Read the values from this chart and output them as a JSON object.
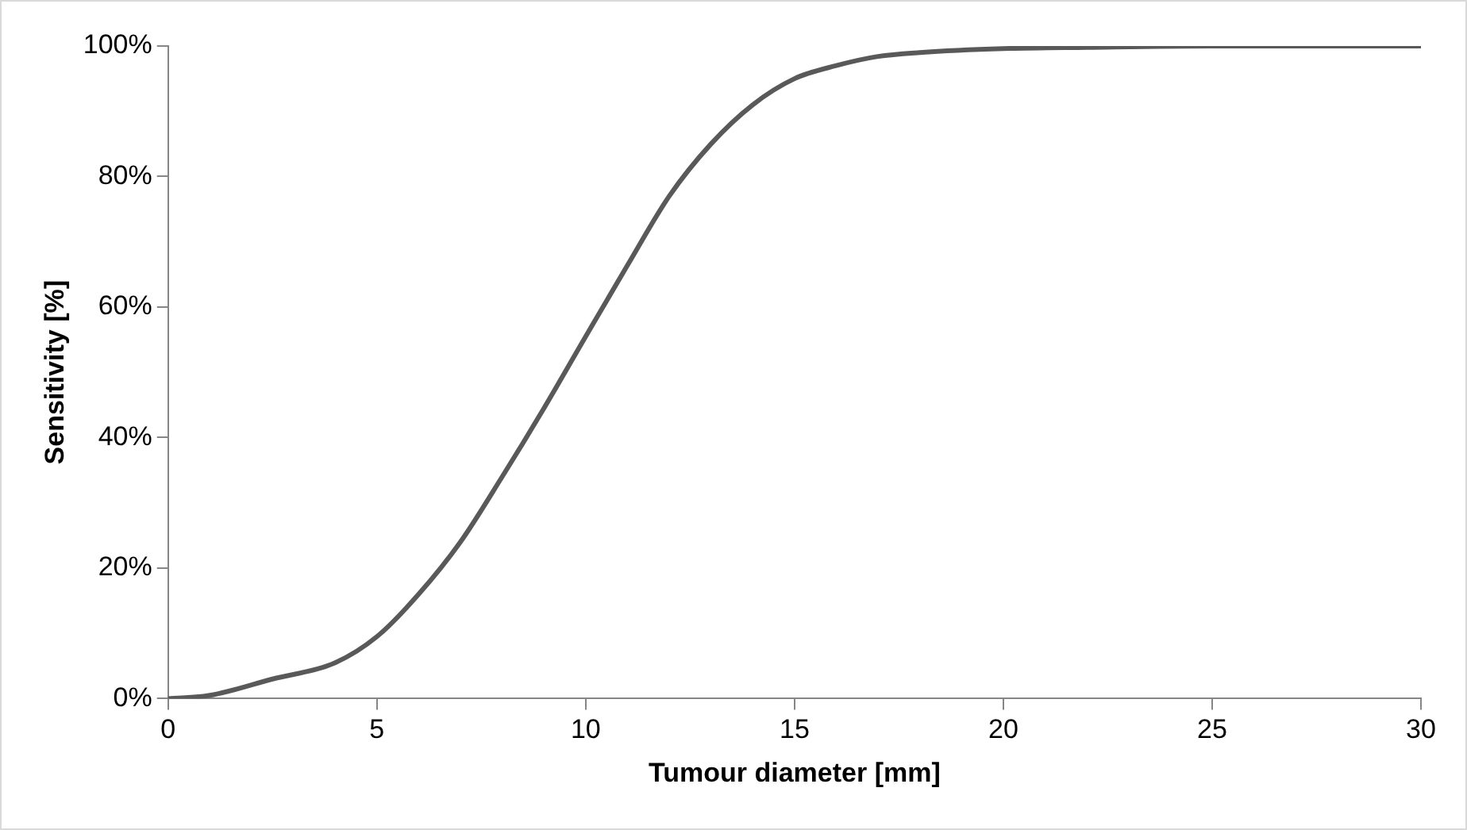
{
  "chart_data": {
    "type": "line",
    "xlabel": "Tumour diameter [mm]",
    "ylabel": "Sensitivity [%]",
    "xlim": [
      0,
      30
    ],
    "xticks": [
      0,
      5,
      10,
      15,
      20,
      25,
      30
    ],
    "ylim": [
      0,
      100
    ],
    "yticks": [
      {
        "value": 0,
        "label": "0%"
      },
      {
        "value": 20,
        "label": "20%"
      },
      {
        "value": 40,
        "label": "40%"
      },
      {
        "value": 60,
        "label": "60%"
      },
      {
        "value": 80,
        "label": "80%"
      },
      {
        "value": 100,
        "label": "100%"
      }
    ],
    "grid": false,
    "legend": false,
    "marker": "none",
    "line_style": "solid",
    "series": [
      {
        "color": "#595959",
        "x": [
          0,
          1,
          2.5,
          4,
          5,
          6,
          7,
          8,
          9,
          10,
          11,
          12,
          13,
          14,
          15,
          16,
          17,
          18,
          20,
          22,
          25,
          30
        ],
        "values": [
          0,
          0.5,
          3,
          5.5,
          9.5,
          16,
          24,
          34,
          44.5,
          55.5,
          66.4,
          77,
          85,
          91,
          95,
          97,
          98.4,
          99,
          99.6,
          99.8,
          100,
          100
        ]
      }
    ]
  }
}
